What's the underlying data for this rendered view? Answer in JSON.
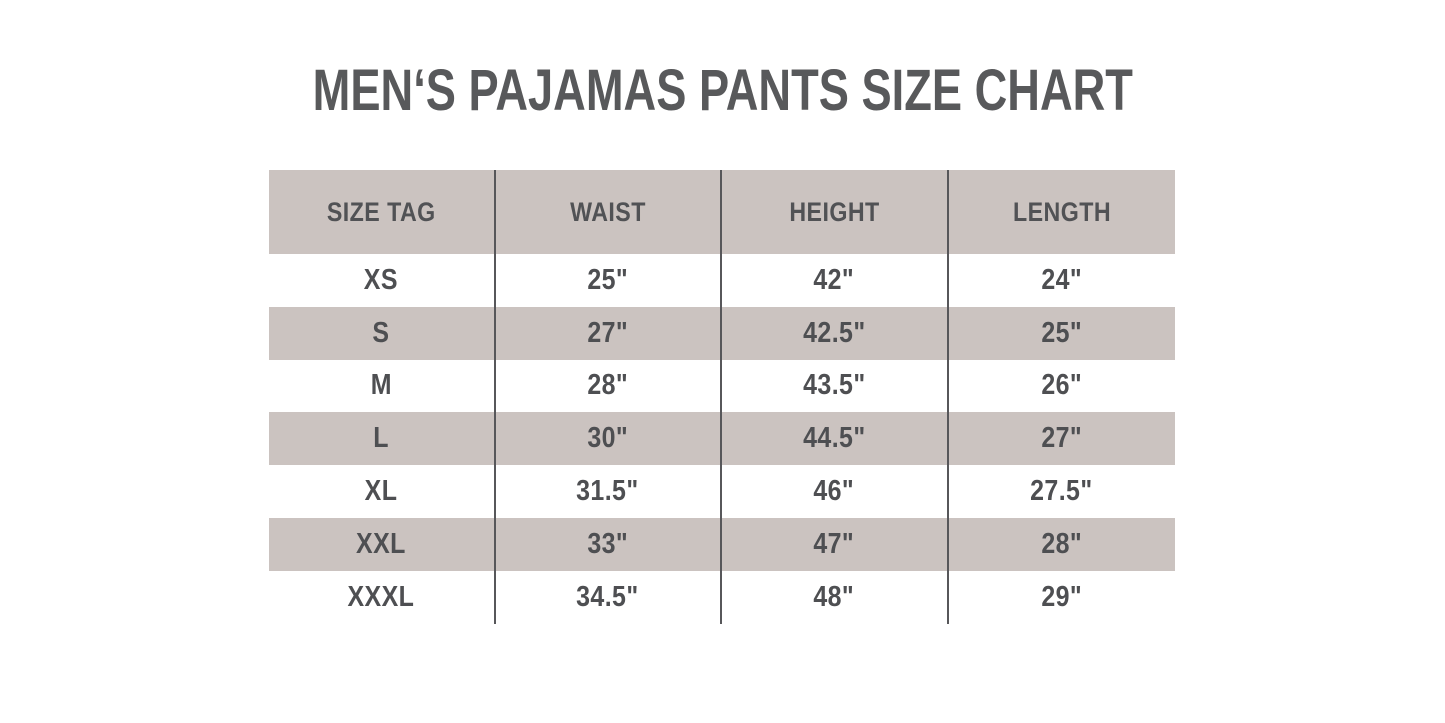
{
  "chart_data": {
    "type": "table",
    "title": "MEN‘S PAJAMAS PANTS SIZE CHART",
    "columns": [
      "SIZE TAG",
      "WAIST",
      "HEIGHT",
      "LENGTH"
    ],
    "rows": [
      [
        "XS",
        "25\"",
        "42\"",
        "24\""
      ],
      [
        "S",
        "27\"",
        "42.5\"",
        "25\""
      ],
      [
        "M",
        "28\"",
        "43.5\"",
        "26\""
      ],
      [
        "L",
        "30\"",
        "44.5\"",
        "27\""
      ],
      [
        "XL",
        "31.5\"",
        "46\"",
        "27.5\""
      ],
      [
        "XXL",
        "33\"",
        "47\"",
        "28\""
      ],
      [
        "XXXL",
        "34.5\"",
        "48\"",
        "29\""
      ]
    ],
    "layout": {
      "shaded_rows": [
        "header",
        "S",
        "L",
        "XXL"
      ],
      "gridlines": "vertical-only",
      "legend": "none"
    }
  },
  "colors": {
    "background": "#ffffff",
    "row_shade": "#cbc3c0",
    "title_text": "#58595b",
    "cell_text": "#4e4f52",
    "divider": "#57575a"
  }
}
